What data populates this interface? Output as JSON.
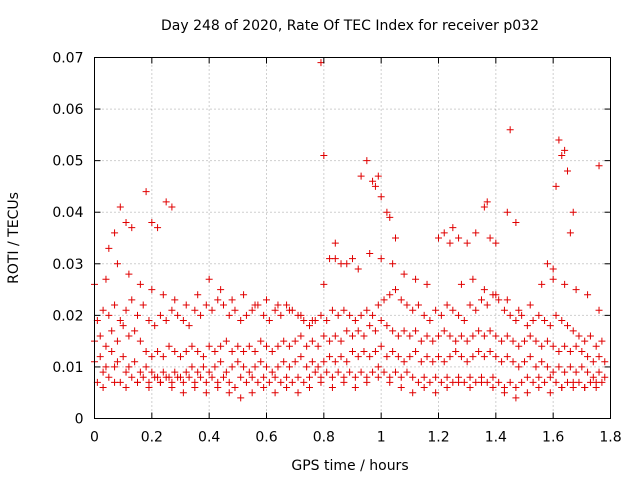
{
  "chart_data": {
    "type": "scatter",
    "title": "Day 248 of 2020, Rate Of TEC Index for receiver p032",
    "xlabel": "GPS time / hours",
    "ylabel": "ROTI / TECUs",
    "xlim": [
      0,
      1.8
    ],
    "ylim": [
      0,
      0.07
    ],
    "xticks": [
      "0",
      "0.2",
      "0.4",
      "0.6",
      "0.8",
      "1",
      "1.2",
      "1.4",
      "1.6",
      "1.8"
    ],
    "yticks": [
      "0",
      "0.01",
      "0.02",
      "0.03",
      "0.04",
      "0.05",
      "0.06",
      "0.07"
    ],
    "grid": true,
    "marker": "+",
    "color": "#e00000",
    "series": [
      {
        "name": "ROTI",
        "x": [
          0.0,
          0.02,
          0.04,
          0.06,
          0.08,
          0.1,
          0.12,
          0.14,
          0.16,
          0.18,
          0.2,
          0.22,
          0.24,
          0.26,
          0.28,
          0.3,
          0.32,
          0.34,
          0.36,
          0.38,
          0.4,
          0.42,
          0.44,
          0.46,
          0.48,
          0.5,
          0.52,
          0.54,
          0.56,
          0.58,
          0.6,
          0.62,
          0.64,
          0.66,
          0.68,
          0.7,
          0.72,
          0.74,
          0.76,
          0.78,
          0.8,
          0.82,
          0.84,
          0.86,
          0.88,
          0.9,
          0.92,
          0.94,
          0.96,
          0.98,
          1.0,
          1.02,
          1.04,
          1.06,
          1.08,
          1.1,
          1.12,
          1.14,
          1.16,
          1.18,
          1.2,
          1.22,
          1.24,
          1.26,
          1.28,
          1.3,
          1.32,
          1.34,
          1.36,
          1.38,
          1.4,
          1.42,
          1.44,
          1.46,
          1.48,
          1.5,
          1.52,
          1.54,
          1.56,
          1.58,
          1.6,
          1.62,
          1.64,
          1.66,
          1.68,
          1.7,
          1.72,
          1.74,
          1.76,
          1.78,
          0.01,
          0.03,
          0.05,
          0.07,
          0.09,
          0.11,
          0.13,
          0.15,
          0.17,
          0.19,
          0.21,
          0.23,
          0.25,
          0.27,
          0.29,
          0.31,
          0.33,
          0.35,
          0.37,
          0.39,
          0.41,
          0.43,
          0.45,
          0.47,
          0.49,
          0.51,
          0.53,
          0.55,
          0.57,
          0.59,
          0.61,
          0.63,
          0.65,
          0.67,
          0.69,
          0.71,
          0.73,
          0.75,
          0.77,
          0.79,
          0.81,
          0.83,
          0.85,
          0.87,
          0.89,
          0.91,
          0.93,
          0.95,
          0.97,
          0.99,
          1.01,
          1.03,
          1.05,
          1.07,
          1.09,
          1.11,
          1.13,
          1.15,
          1.17,
          1.19,
          1.21,
          1.23,
          1.25,
          1.27,
          1.29,
          1.31,
          1.33,
          1.35,
          1.37,
          1.39,
          1.41,
          1.43,
          1.45,
          1.47,
          1.49,
          1.51,
          1.53,
          1.55,
          1.57,
          1.59,
          1.61,
          1.63,
          1.65,
          1.67,
          1.69,
          1.71,
          1.73,
          1.75,
          1.77,
          0.0,
          0.02,
          0.04,
          0.06,
          0.08,
          0.1,
          0.12,
          0.14,
          0.16,
          0.18,
          0.2,
          0.22,
          0.24,
          0.26,
          0.28,
          0.3,
          0.32,
          0.34,
          0.36,
          0.38,
          0.4,
          0.42,
          0.44,
          0.46,
          0.48,
          0.5,
          0.52,
          0.54,
          0.56,
          0.58,
          0.6,
          0.62,
          0.64,
          0.66,
          0.68,
          0.7,
          0.72,
          0.74,
          0.76,
          0.78,
          0.8,
          0.82,
          0.84,
          0.86,
          0.88,
          0.9,
          0.92,
          0.94,
          0.96,
          0.98,
          1.0,
          1.02,
          1.04,
          1.06,
          1.08,
          1.1,
          1.12,
          1.14,
          1.16,
          1.18,
          1.2,
          1.22,
          1.24,
          1.26,
          1.28,
          1.3,
          1.32,
          1.34,
          1.36,
          1.38,
          1.4,
          1.42,
          1.44,
          1.46,
          1.48,
          1.5,
          1.52,
          1.54,
          1.56,
          1.58,
          1.6,
          1.62,
          1.64,
          1.66,
          1.68,
          1.7,
          1.72,
          1.74,
          1.76,
          1.78,
          0.01,
          0.03,
          0.05,
          0.07,
          0.09,
          0.11,
          0.13,
          0.15,
          0.17,
          0.19,
          0.21,
          0.23,
          0.25,
          0.27,
          0.29,
          0.31,
          0.33,
          0.35,
          0.37,
          0.39,
          0.41,
          0.43,
          0.45,
          0.47,
          0.49,
          0.51,
          0.53,
          0.55,
          0.57,
          0.59,
          0.61,
          0.63,
          0.65,
          0.67,
          0.69,
          0.71,
          0.73,
          0.75,
          0.77,
          0.79,
          0.81,
          0.83,
          0.85,
          0.87,
          0.89,
          0.91,
          0.93,
          0.95,
          0.97,
          0.99,
          1.01,
          1.03,
          1.05,
          1.07,
          1.09,
          1.11,
          1.13,
          1.15,
          1.17,
          1.19,
          1.21,
          1.23,
          1.25,
          1.27,
          1.29,
          1.31,
          1.33,
          1.35,
          1.37,
          1.39,
          1.41,
          1.43,
          1.45,
          1.47,
          1.49,
          1.51,
          1.53,
          1.55,
          1.57,
          1.59,
          1.61,
          1.63,
          1.65,
          1.67,
          1.69,
          1.71,
          1.73,
          1.75,
          1.77,
          0.0,
          0.04,
          0.08,
          0.12,
          0.16,
          0.2,
          0.24,
          0.28,
          0.32,
          0.36,
          0.4,
          0.44,
          0.48,
          0.52,
          0.56,
          0.6,
          0.64,
          0.68,
          0.72,
          0.76,
          0.8,
          0.84,
          0.88,
          0.92,
          0.96,
          1.0,
          1.04,
          1.08,
          1.12,
          1.16,
          1.2,
          1.24,
          1.28,
          1.32,
          1.36,
          1.4,
          1.44,
          1.48,
          1.52,
          1.56,
          1.6,
          1.64,
          1.68,
          1.72,
          1.76,
          0.03,
          0.07,
          0.11,
          0.15,
          0.19,
          0.23,
          0.27,
          0.31,
          0.35,
          0.39,
          0.43,
          0.47,
          0.51,
          0.55,
          0.59,
          0.63,
          0.67,
          0.71,
          0.75,
          0.79,
          0.83,
          0.87,
          0.91,
          0.95,
          0.99,
          1.03,
          1.07,
          1.11,
          1.15,
          1.19,
          1.23,
          1.27,
          1.31,
          1.35,
          1.39,
          1.43,
          1.47,
          1.51,
          1.55,
          1.59,
          1.63,
          1.67,
          1.71,
          1.75,
          0.05,
          0.07,
          0.09,
          0.11,
          0.13,
          0.18,
          0.2,
          0.22,
          0.25,
          0.27,
          0.79,
          0.8,
          0.82,
          0.84,
          0.86,
          0.9,
          0.93,
          0.95,
          0.97,
          0.98,
          0.99,
          1.0,
          1.02,
          1.03,
          1.05,
          1.2,
          1.22,
          1.25,
          1.27,
          1.3,
          1.33,
          1.36,
          1.37,
          1.38,
          1.4,
          1.44,
          1.45,
          1.47,
          1.58,
          1.6,
          1.61,
          1.62,
          1.63,
          1.64,
          1.65,
          1.66,
          1.67,
          1.76
        ],
        "y": [
          0.011,
          0.012,
          0.01,
          0.013,
          0.011,
          0.012,
          0.01,
          0.011,
          0.009,
          0.01,
          0.009,
          0.008,
          0.009,
          0.008,
          0.009,
          0.008,
          0.009,
          0.01,
          0.009,
          0.01,
          0.009,
          0.01,
          0.011,
          0.009,
          0.01,
          0.011,
          0.01,
          0.009,
          0.01,
          0.011,
          0.01,
          0.009,
          0.01,
          0.011,
          0.01,
          0.011,
          0.012,
          0.01,
          0.011,
          0.01,
          0.011,
          0.012,
          0.011,
          0.012,
          0.011,
          0.013,
          0.012,
          0.013,
          0.012,
          0.013,
          0.014,
          0.012,
          0.013,
          0.012,
          0.011,
          0.012,
          0.013,
          0.011,
          0.012,
          0.011,
          0.012,
          0.011,
          0.012,
          0.013,
          0.012,
          0.011,
          0.012,
          0.013,
          0.012,
          0.013,
          0.012,
          0.011,
          0.012,
          0.011,
          0.01,
          0.011,
          0.012,
          0.01,
          0.011,
          0.01,
          0.009,
          0.01,
          0.009,
          0.01,
          0.009,
          0.01,
          0.009,
          0.008,
          0.009,
          0.008,
          0.007,
          0.009,
          0.008,
          0.01,
          0.007,
          0.009,
          0.008,
          0.007,
          0.008,
          0.007,
          0.008,
          0.007,
          0.008,
          0.007,
          0.008,
          0.007,
          0.008,
          0.007,
          0.008,
          0.007,
          0.008,
          0.007,
          0.008,
          0.007,
          0.006,
          0.008,
          0.007,
          0.008,
          0.007,
          0.008,
          0.007,
          0.008,
          0.007,
          0.008,
          0.007,
          0.008,
          0.007,
          0.008,
          0.009,
          0.008,
          0.009,
          0.008,
          0.009,
          0.008,
          0.009,
          0.008,
          0.009,
          0.008,
          0.009,
          0.01,
          0.009,
          0.008,
          0.009,
          0.008,
          0.009,
          0.008,
          0.007,
          0.008,
          0.007,
          0.008,
          0.007,
          0.008,
          0.007,
          0.008,
          0.007,
          0.008,
          0.007,
          0.008,
          0.007,
          0.008,
          0.007,
          0.006,
          0.007,
          0.006,
          0.007,
          0.008,
          0.007,
          0.008,
          0.007,
          0.008,
          0.007,
          0.006,
          0.007,
          0.006,
          0.007,
          0.006,
          0.007,
          0.006,
          0.007,
          0.015,
          0.016,
          0.014,
          0.017,
          0.015,
          0.018,
          0.016,
          0.017,
          0.015,
          0.013,
          0.012,
          0.013,
          0.012,
          0.014,
          0.013,
          0.012,
          0.013,
          0.014,
          0.013,
          0.012,
          0.014,
          0.013,
          0.014,
          0.015,
          0.013,
          0.014,
          0.013,
          0.014,
          0.013,
          0.015,
          0.014,
          0.013,
          0.014,
          0.015,
          0.014,
          0.015,
          0.016,
          0.014,
          0.015,
          0.014,
          0.016,
          0.015,
          0.016,
          0.015,
          0.017,
          0.016,
          0.017,
          0.016,
          0.018,
          0.017,
          0.019,
          0.018,
          0.017,
          0.016,
          0.017,
          0.016,
          0.017,
          0.015,
          0.016,
          0.015,
          0.016,
          0.017,
          0.016,
          0.015,
          0.016,
          0.015,
          0.016,
          0.017,
          0.016,
          0.017,
          0.016,
          0.015,
          0.016,
          0.015,
          0.014,
          0.015,
          0.016,
          0.015,
          0.014,
          0.015,
          0.014,
          0.013,
          0.014,
          0.013,
          0.014,
          0.013,
          0.012,
          0.011,
          0.012,
          0.011,
          0.019,
          0.021,
          0.02,
          0.022,
          0.019,
          0.021,
          0.023,
          0.02,
          0.022,
          0.019,
          0.018,
          0.02,
          0.019,
          0.021,
          0.02,
          0.019,
          0.018,
          0.021,
          0.02,
          0.022,
          0.021,
          0.023,
          0.022,
          0.02,
          0.021,
          0.019,
          0.02,
          0.021,
          0.022,
          0.02,
          0.019,
          0.021,
          0.02,
          0.022,
          0.021,
          0.02,
          0.019,
          0.018,
          0.019,
          0.02,
          0.019,
          0.021,
          0.02,
          0.021,
          0.02,
          0.019,
          0.02,
          0.021,
          0.02,
          0.022,
          0.023,
          0.024,
          0.025,
          0.023,
          0.022,
          0.021,
          0.022,
          0.02,
          0.019,
          0.021,
          0.02,
          0.022,
          0.021,
          0.02,
          0.019,
          0.022,
          0.021,
          0.023,
          0.022,
          0.024,
          0.023,
          0.021,
          0.02,
          0.019,
          0.02,
          0.018,
          0.019,
          0.02,
          0.019,
          0.018,
          0.02,
          0.019,
          0.018,
          0.017,
          0.016,
          0.015,
          0.016,
          0.014,
          0.015,
          0.026,
          0.027,
          0.03,
          0.028,
          0.026,
          0.025,
          0.024,
          0.023,
          0.022,
          0.024,
          0.027,
          0.025,
          0.023,
          0.024,
          0.022,
          0.023,
          0.022,
          0.021,
          0.02,
          0.019,
          0.026,
          0.031,
          0.03,
          0.029,
          0.032,
          0.031,
          0.03,
          0.028,
          0.027,
          0.026,
          0.035,
          0.034,
          0.026,
          0.027,
          0.025,
          0.024,
          0.023,
          0.021,
          0.022,
          0.026,
          0.027,
          0.026,
          0.025,
          0.024,
          0.021,
          0.006,
          0.007,
          0.006,
          0.007,
          0.006,
          0.007,
          0.006,
          0.005,
          0.006,
          0.005,
          0.006,
          0.005,
          0.004,
          0.005,
          0.006,
          0.005,
          0.006,
          0.005,
          0.006,
          0.007,
          0.006,
          0.007,
          0.006,
          0.007,
          0.008,
          0.007,
          0.006,
          0.005,
          0.006,
          0.005,
          0.006,
          0.007,
          0.006,
          0.007,
          0.006,
          0.005,
          0.004,
          0.005,
          0.006,
          0.005,
          0.006,
          0.007,
          0.006,
          0.007,
          0.033,
          0.036,
          0.041,
          0.038,
          0.037,
          0.044,
          0.038,
          0.037,
          0.042,
          0.041,
          0.069,
          0.051,
          0.031,
          0.034,
          0.03,
          0.031,
          0.047,
          0.05,
          0.046,
          0.045,
          0.047,
          0.043,
          0.04,
          0.039,
          0.035,
          0.035,
          0.036,
          0.037,
          0.035,
          0.034,
          0.036,
          0.041,
          0.042,
          0.035,
          0.034,
          0.04,
          0.056,
          0.038,
          0.03,
          0.029,
          0.045,
          0.054,
          0.051,
          0.052,
          0.048,
          0.036,
          0.04,
          0.049
        ]
      }
    ]
  }
}
